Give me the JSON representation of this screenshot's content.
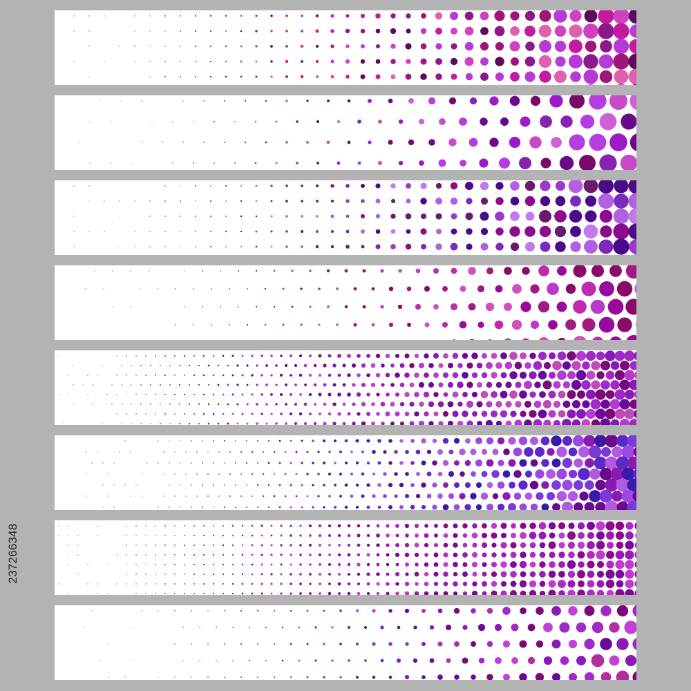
{
  "artwork": {
    "background_color": "#b3b3b3",
    "banner_color": "#ffffff",
    "stock_id": "237266348"
  },
  "banners": [
    {
      "pattern": "square-grid-gradient",
      "palette": [
        "#5c0a5c",
        "#a0157a",
        "#c41aa0",
        "#d040c0",
        "#8a1a8a",
        "#e060b0",
        "#b83ad6"
      ]
    },
    {
      "pattern": "diagonal-grid-gradient",
      "palette": [
        "#6a0a8a",
        "#9c1ac8",
        "#b43ce0",
        "#c84ac8",
        "#7a0a6a",
        "#d060d8",
        "#8a22b0"
      ]
    },
    {
      "pattern": "scattered-grid-gradient",
      "palette": [
        "#4a0a8a",
        "#7a2ab8",
        "#9a3ac8",
        "#b060e0",
        "#c07aec",
        "#6a1a6a",
        "#8c0a8c"
      ]
    },
    {
      "pattern": "diamond-grid-gradient",
      "palette": [
        "#9a0a9a",
        "#c02ab0",
        "#b83ac8",
        "#d050c0",
        "#a01a80",
        "#8a0a6a"
      ]
    },
    {
      "pattern": "fine-diagonal-gradient",
      "palette": [
        "#6a0a9a",
        "#8a1ab8",
        "#a02ac8",
        "#b43ad0",
        "#c04ab8",
        "#7a0a7a"
      ]
    },
    {
      "pattern": "chevron-grid-gradient",
      "palette": [
        "#3a1aa8",
        "#5a2ac8",
        "#7a3ad8",
        "#9a4ae0",
        "#b05ae0",
        "#6a0a8a",
        "#8a1ab0"
      ]
    },
    {
      "pattern": "fine-square-gradient",
      "palette": [
        "#7a0a9a",
        "#9a1ab8",
        "#b02ac8",
        "#c03ad0",
        "#8a0a8a"
      ]
    },
    {
      "pattern": "scattered-diamond-gradient",
      "palette": [
        "#6a0a9a",
        "#8a1ab8",
        "#a02ac8",
        "#c040d8",
        "#b030a0",
        "#7a0a7a"
      ]
    }
  ]
}
